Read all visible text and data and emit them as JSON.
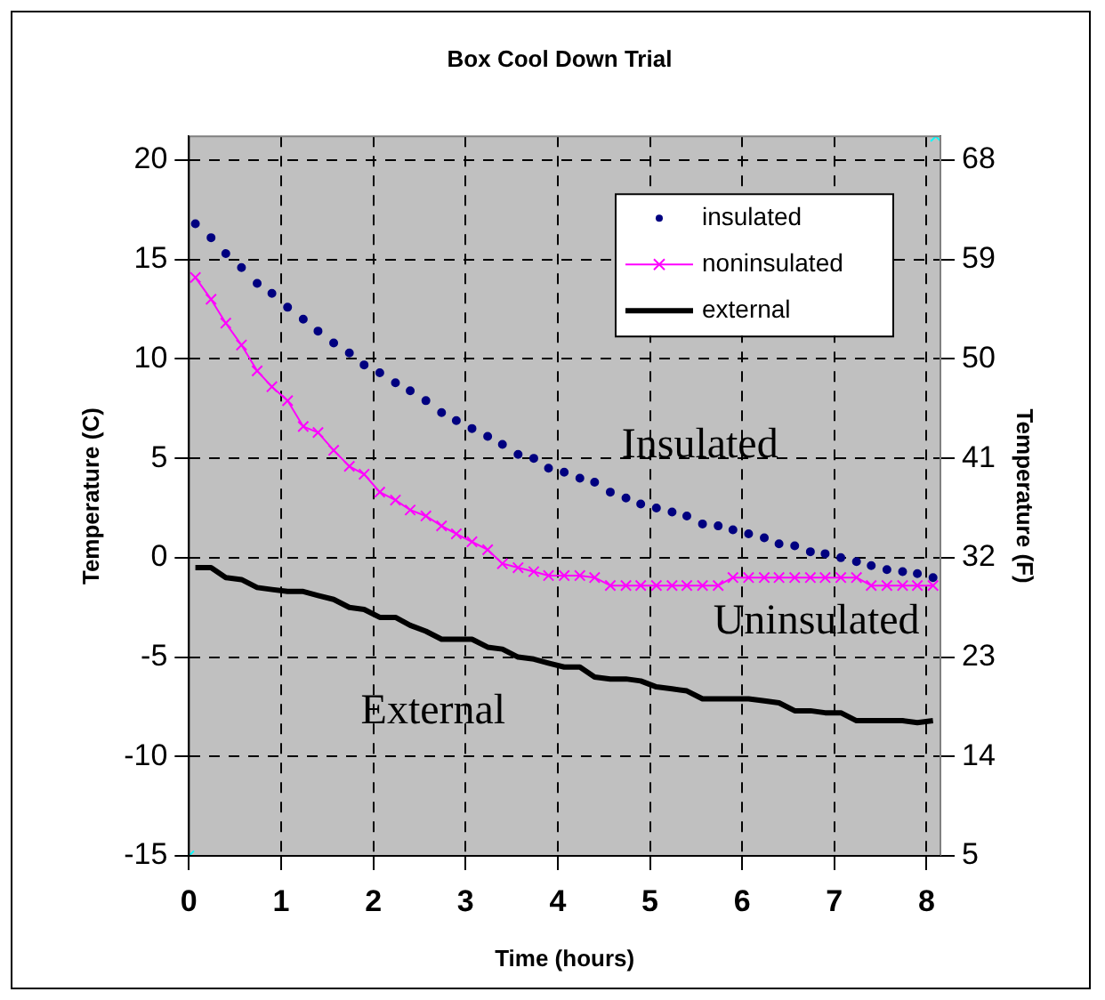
{
  "chart_data": {
    "type": "line",
    "title": "Box Cool Down Trial",
    "xlabel": "Time (hours)",
    "ylabel": "Temperature (C)",
    "y2label": "Temperature (F)",
    "xlim": [
      0,
      8.15
    ],
    "xticks": [
      0,
      1,
      2,
      3,
      4,
      5,
      6,
      7,
      8
    ],
    "ylim": [
      -15,
      21.2
    ],
    "yticks": [
      -15,
      -10,
      -5,
      0,
      5,
      10,
      15,
      20
    ],
    "y2lim": [
      5,
      70.16
    ],
    "y2ticks": [
      5,
      14,
      23,
      32,
      41,
      50,
      59,
      68
    ],
    "grid": true,
    "legend": "top right",
    "x": [
      0.07,
      0.24,
      0.4,
      0.57,
      0.74,
      0.9,
      1.07,
      1.24,
      1.4,
      1.57,
      1.74,
      1.9,
      2.07,
      2.24,
      2.4,
      2.57,
      2.74,
      2.9,
      3.07,
      3.24,
      3.4,
      3.57,
      3.74,
      3.9,
      4.07,
      4.24,
      4.4,
      4.57,
      4.74,
      4.9,
      5.07,
      5.24,
      5.4,
      5.57,
      5.74,
      5.9,
      6.07,
      6.24,
      6.4,
      6.57,
      6.74,
      6.9,
      7.07,
      7.24,
      7.4,
      7.57,
      7.74,
      7.9,
      8.07
    ],
    "series": [
      {
        "name": "insulated",
        "type": "scatter",
        "marker": "circle",
        "color": "#000080",
        "values": [
          16.8,
          16.1,
          15.3,
          14.6,
          13.8,
          13.3,
          12.6,
          12.0,
          11.4,
          10.8,
          10.3,
          9.7,
          9.3,
          8.8,
          8.4,
          7.9,
          7.3,
          6.9,
          6.5,
          6.1,
          5.7,
          5.2,
          5.0,
          4.5,
          4.3,
          4.0,
          3.8,
          3.3,
          3.0,
          2.7,
          2.5,
          2.3,
          2.1,
          1.7,
          1.6,
          1.4,
          1.2,
          1.0,
          0.7,
          0.6,
          0.3,
          0.2,
          0.0,
          -0.2,
          -0.4,
          -0.6,
          -0.7,
          -0.8,
          -1.0
        ]
      },
      {
        "name": "noninsulated",
        "marker": "cross",
        "color": "#ff00ff",
        "values": [
          14.1,
          13.0,
          11.8,
          10.7,
          9.4,
          8.6,
          7.9,
          6.6,
          6.3,
          5.4,
          4.6,
          4.2,
          3.3,
          2.9,
          2.4,
          2.1,
          1.6,
          1.2,
          0.8,
          0.4,
          -0.3,
          -0.5,
          -0.7,
          -0.9,
          -0.9,
          -0.9,
          -1.0,
          -1.4,
          -1.4,
          -1.4,
          -1.4,
          -1.4,
          -1.4,
          -1.4,
          -1.4,
          -1.0,
          -1.0,
          -1.0,
          -1.0,
          -1.0,
          -1.0,
          -1.0,
          -1.0,
          -1.0,
          -1.4,
          -1.4,
          -1.4,
          -1.4,
          -1.4
        ]
      },
      {
        "name": "external",
        "marker": "none",
        "color": "#000000",
        "values": [
          -0.5,
          -0.5,
          -1.0,
          -1.1,
          -1.5,
          -1.6,
          -1.7,
          -1.7,
          -1.9,
          -2.1,
          -2.5,
          -2.6,
          -3.0,
          -3.0,
          -3.4,
          -3.7,
          -4.1,
          -4.1,
          -4.1,
          -4.5,
          -4.6,
          -5.0,
          -5.1,
          -5.3,
          -5.5,
          -5.5,
          -6.0,
          -6.1,
          -6.1,
          -6.2,
          -6.5,
          -6.6,
          -6.7,
          -7.1,
          -7.1,
          -7.1,
          -7.1,
          -7.2,
          -7.3,
          -7.7,
          -7.7,
          -7.8,
          -7.8,
          -8.2,
          -8.2,
          -8.2,
          -8.2,
          -8.3,
          -8.2
        ]
      },
      {
        "type": "scatter",
        "marker": "cross",
        "color": "#00ffff",
        "x": [
          0,
          8.1
        ],
        "values": [
          -15,
          21.2
        ]
      }
    ],
    "annotations": [
      "Insulated",
      "Uninsulated",
      "External"
    ]
  }
}
